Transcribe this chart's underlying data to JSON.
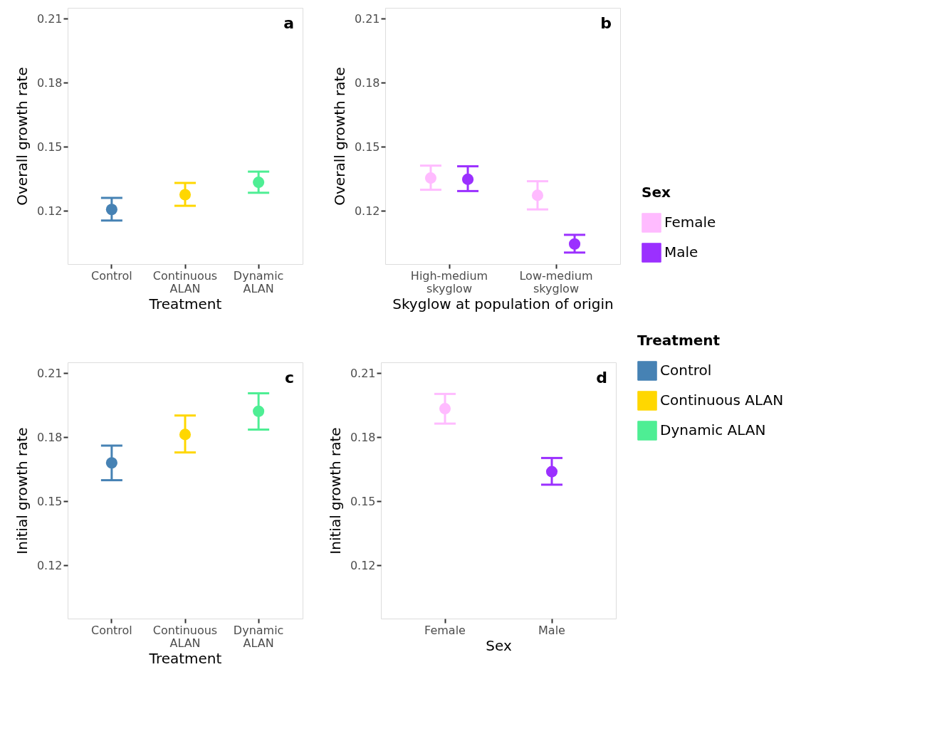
{
  "chart_data": [
    {
      "type": "scatter",
      "title": "a",
      "xlabel": "Treatment",
      "ylabel": "Overall growth rate",
      "categories": [
        "Control",
        "Continuous ALAN",
        "Dynamic ALAN"
      ],
      "values": [
        0.1206,
        0.1275,
        0.1333
      ],
      "errors": [
        [
          0.1154,
          0.126
        ],
        [
          0.1223,
          0.133
        ],
        [
          0.1284,
          0.1383
        ]
      ],
      "colors": [
        "#4682b4",
        "#ffd700",
        "#4eee94"
      ],
      "ylim": [
        0.095,
        0.215
      ],
      "yticks": [
        0.12,
        0.15,
        0.18,
        0.21
      ],
      "grid": false,
      "legend": false,
      "marker": "circle"
    },
    {
      "type": "scatter",
      "title": "b",
      "xlabel": "Skyglow at population of origin",
      "ylabel": "Overall growth rate",
      "legend_title": "Sex",
      "categories": [
        "High-medium skyglow",
        "Low-medium skyglow"
      ],
      "series": [
        {
          "name": "Female",
          "color": "#ffbbff",
          "values": [
            0.1353,
            0.1272
          ],
          "errors": [
            [
              0.1298,
              0.1411
            ],
            [
              0.1206,
              0.1338
            ]
          ]
        },
        {
          "name": "Male",
          "color": "#9b30ff",
          "values": [
            0.1347,
            0.1044
          ],
          "errors": [
            [
              0.1292,
              0.1408
            ],
            [
              0.1004,
              0.1087
            ]
          ]
        }
      ],
      "ylim": [
        0.095,
        0.215
      ],
      "yticks": [
        0.12,
        0.15,
        0.18,
        0.21
      ],
      "grid": false,
      "legend": "right",
      "marker": "circle"
    },
    {
      "type": "scatter",
      "title": "c",
      "xlabel": "Treatment",
      "ylabel": "Initial growth rate",
      "legend_title": "Treatment",
      "categories": [
        "Control",
        "Continuous ALAN",
        "Dynamic ALAN"
      ],
      "series": [
        {
          "name": "Control",
          "color": "#4682b4",
          "values": [
            0.1679,
            null,
            null
          ],
          "errors": [
            [
              0.1598,
              0.176
            ],
            null,
            null
          ]
        },
        {
          "name": "Continuous ALAN",
          "color": "#ffd700",
          "values": [
            null,
            0.1812,
            null
          ],
          "errors": [
            null,
            [
              0.1728,
              0.1901
            ],
            null
          ]
        },
        {
          "name": "Dynamic ALAN",
          "color": "#4eee94",
          "values": [
            null,
            null,
            0.1921
          ],
          "errors": [
            null,
            null,
            [
              0.1835,
              0.2005
            ]
          ]
        }
      ],
      "ylim": [
        0.095,
        0.215
      ],
      "yticks": [
        0.12,
        0.15,
        0.18,
        0.21
      ],
      "grid": false,
      "legend": "right",
      "marker": "circle"
    },
    {
      "type": "scatter",
      "title": "d",
      "xlabel": "Sex",
      "ylabel": "Initial growth rate",
      "categories": [
        "Female",
        "Male"
      ],
      "values": [
        0.1933,
        0.1638
      ],
      "errors": [
        [
          0.1863,
          0.2002
        ],
        [
          0.1577,
          0.1702
        ]
      ],
      "colors": [
        "#ffbbff",
        "#9b30ff"
      ],
      "ylim": [
        0.095,
        0.215
      ],
      "yticks": [
        0.12,
        0.15,
        0.18,
        0.21
      ],
      "grid": false,
      "legend": false,
      "marker": "circle"
    }
  ]
}
